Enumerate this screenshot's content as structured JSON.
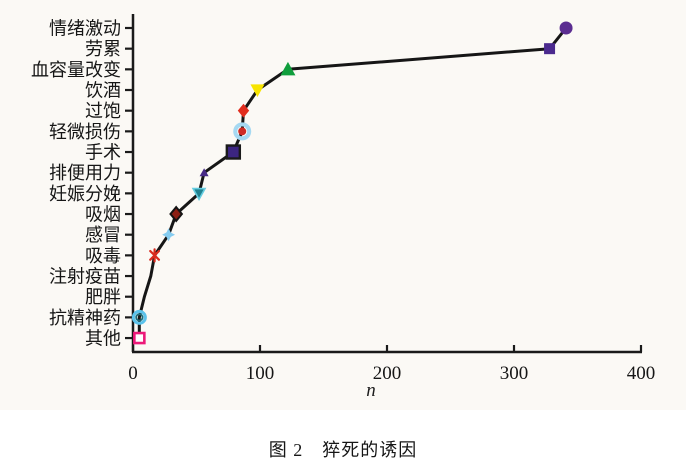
{
  "figure": {
    "plot_background": "#fbf9f5",
    "page_background": "#ffffff"
  },
  "chart_data": {
    "type": "line",
    "orientation": "horizontal-categories-on-y",
    "title": "图2 猝死的诱因",
    "caption": "图 2　猝死的诱因",
    "xlabel": "n",
    "ylabel": "",
    "xlim": [
      0,
      400
    ],
    "x_ticks": [
      0,
      100,
      200,
      300,
      400
    ],
    "grid": false,
    "legend": false,
    "line_color": "#161616",
    "axis_color": "#1a1a1a",
    "categories_order": "top-to-bottom",
    "categories": [
      "情绪激动",
      "劳累",
      "血容量改变",
      "饮酒",
      "过饱",
      "轻微损伤",
      "手术",
      "排便用力",
      "妊娠分娩",
      "吸烟",
      "感冒",
      "吸毒",
      "注射疫苗",
      "肥胖",
      "抗精神药",
      "其他"
    ],
    "values": [
      341,
      328,
      122,
      98,
      87,
      86,
      79,
      56,
      52,
      34,
      28,
      17,
      14,
      9,
      5,
      5
    ],
    "markers": [
      {
        "shape": "circle",
        "fill": "#5b2d91",
        "size": 13
      },
      {
        "shape": "square",
        "fill": "#4b2a8e",
        "size": 11
      },
      {
        "shape": "triangle-up",
        "fill": "#0f9e3c",
        "size": 15
      },
      {
        "shape": "triangle-down",
        "fill": "#f7e400",
        "size": 14
      },
      {
        "shape": "diamond",
        "fill": "#e12d1e",
        "size": 12
      },
      {
        "shape": "ring-dot",
        "fill": "#cf2b24",
        "ring": "#a6d9f2",
        "size": 14
      },
      {
        "shape": "square",
        "fill": "#3c2581",
        "stroke": "#1a1a1a",
        "size": 13
      },
      {
        "shape": "triangle-up",
        "fill": "#472a86",
        "size": 9
      },
      {
        "shape": "triangle-down",
        "fill": "#1f8290",
        "stroke": "#66cde0",
        "size": 12
      },
      {
        "shape": "diamond",
        "fill": "#8c1f14",
        "stroke": "#141414",
        "size": 12
      },
      {
        "shape": "star4",
        "fill": "#85ccf0",
        "size": 13
      },
      {
        "shape": "asterisk",
        "stroke": "#d92b1f",
        "size": 12
      },
      {
        "shape": "none"
      },
      {
        "shape": "none"
      },
      {
        "shape": "donut",
        "stroke": "#5bc2ea",
        "inner": "#1d6b78",
        "size": 12
      },
      {
        "shape": "open-square",
        "stroke": "#ec1979",
        "size": 10
      }
    ]
  }
}
